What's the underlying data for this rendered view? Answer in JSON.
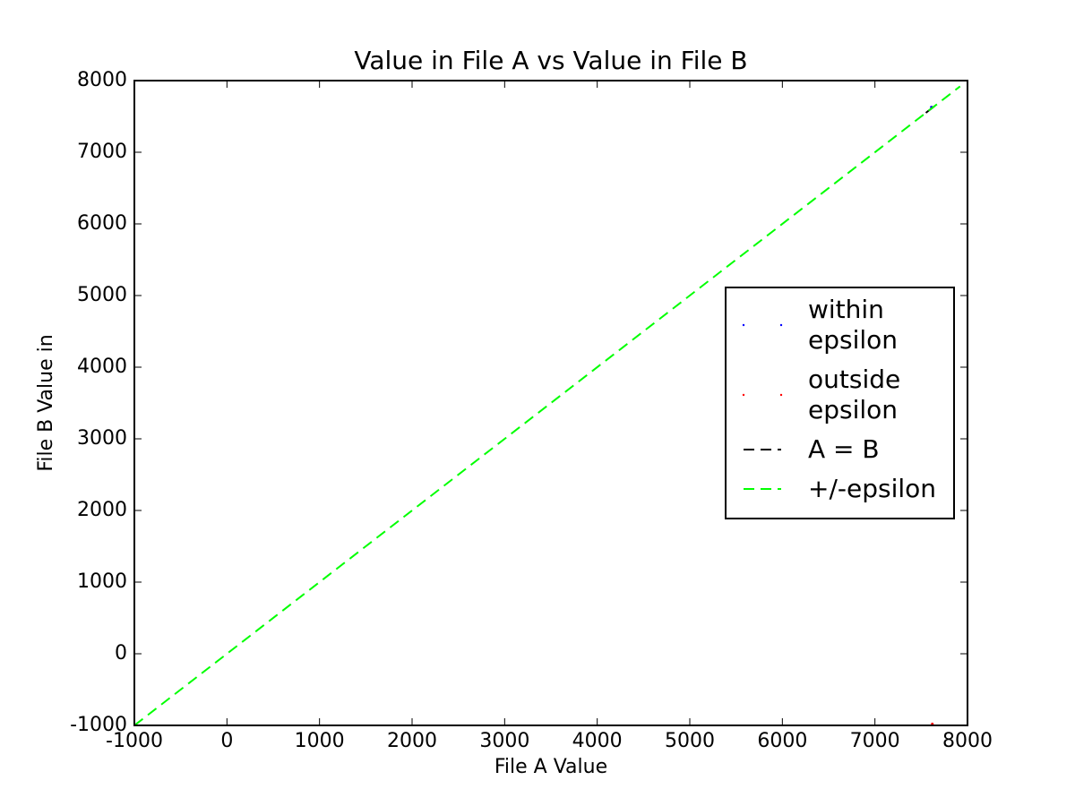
{
  "chart_data": {
    "type": "line",
    "title": "Value in File A vs Value in File B",
    "x_label": "File A Value",
    "y_label": "File B Value in",
    "xlim": [
      -1000,
      8000
    ],
    "ylim": [
      -1000,
      8000
    ],
    "xticks": [
      -1000,
      0,
      1000,
      2000,
      3000,
      4000,
      5000,
      6000,
      7000,
      8000
    ],
    "yticks": [
      -1000,
      0,
      1000,
      2000,
      3000,
      4000,
      5000,
      6000,
      7000,
      8000
    ],
    "legend": "center right",
    "series": [
      {
        "name": "within\nepsilon",
        "color": "#0000ff",
        "marker": ".",
        "x": [
          7610
        ],
        "y": [
          7630
        ]
      },
      {
        "name": "outside\nepsilon",
        "color": "#ff0000",
        "marker": ".",
        "x": [
          7620
        ],
        "y": [
          -980
        ]
      },
      {
        "name": "A = B",
        "color": "#000000",
        "linestyle": "--",
        "x": [
          7550,
          7660
        ],
        "y": [
          7550,
          7660
        ]
      },
      {
        "name": "+/-epsilon",
        "color": "#00ff00",
        "linestyle": "--",
        "x": [
          -1000,
          7920
        ],
        "y": [
          -1000,
          7920
        ]
      }
    ]
  }
}
